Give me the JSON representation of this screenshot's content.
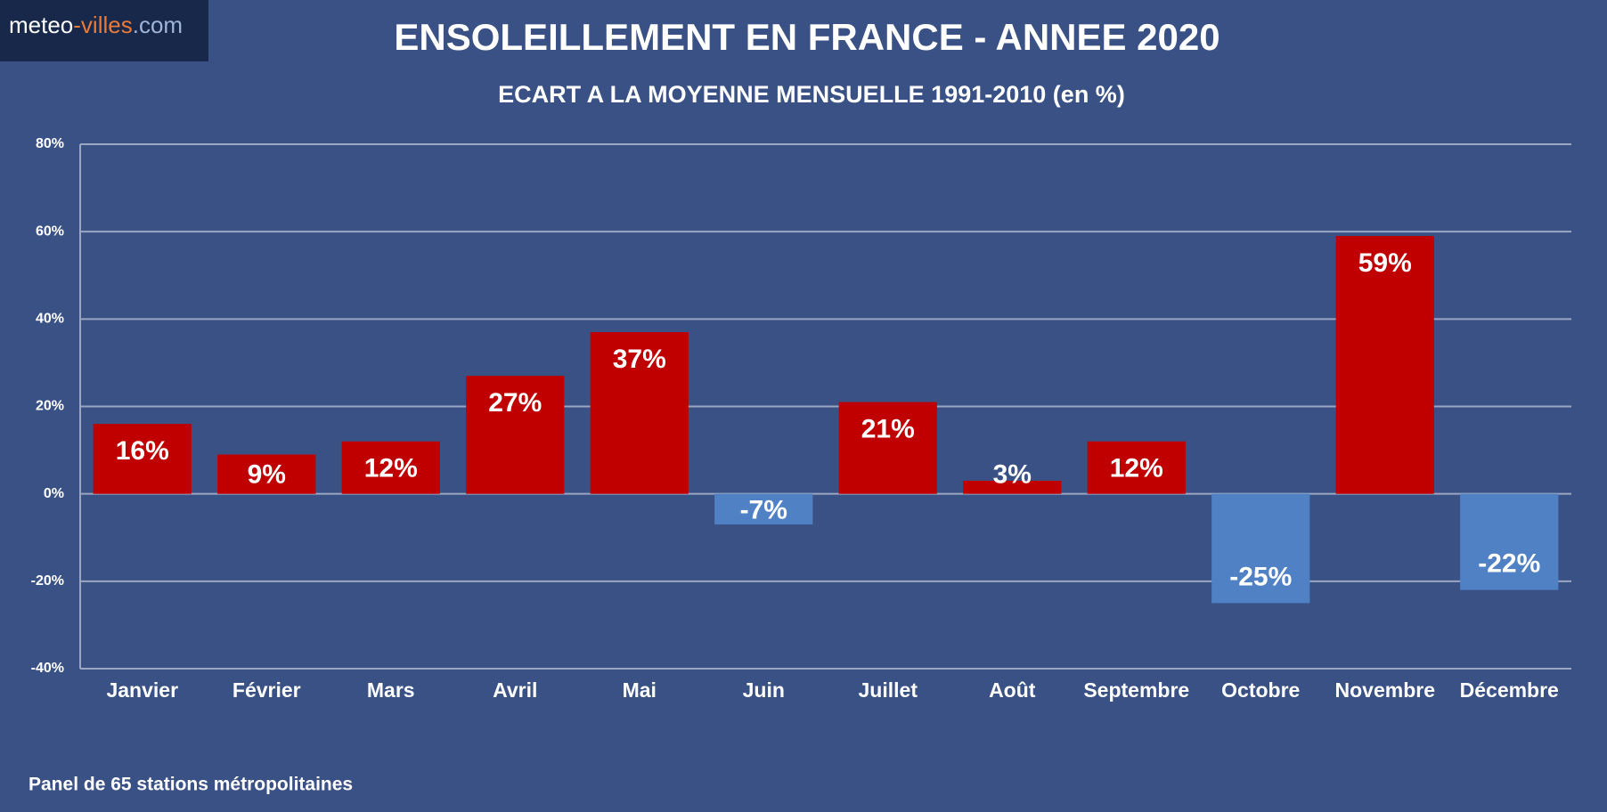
{
  "logo": [
    "meteo",
    "-villes",
    ".com"
  ],
  "chart_data": {
    "type": "bar",
    "title": "ENSOLEILLEMENT EN FRANCE - ANNEE 2020",
    "subtitle": "ECART A LA MOYENNE MENSUELLE 1991-2010 (en %)",
    "categories": [
      "Janvier",
      "Février",
      "Mars",
      "Avril",
      "Mai",
      "Juin",
      "Juillet",
      "Août",
      "Septembre",
      "Octobre",
      "Novembre",
      "Décembre"
    ],
    "values": [
      16,
      9,
      12,
      27,
      37,
      -7,
      21,
      3,
      12,
      -25,
      59,
      -22
    ],
    "value_labels": [
      "16%",
      "9%",
      "12%",
      "27%",
      "37%",
      "-7%",
      "21%",
      "3%",
      "12%",
      "-25%",
      "59%",
      "-22%"
    ],
    "positive_color": "#c00000",
    "negative_color": "#4f81c4",
    "ylim": [
      -40,
      80
    ],
    "yticks": [
      {
        "value": -40,
        "label": "-40%"
      },
      {
        "value": -20,
        "label": "-20%"
      },
      {
        "value": 0,
        "label": "0%"
      },
      {
        "value": 20,
        "label": "20%"
      },
      {
        "value": 40,
        "label": "40%"
      },
      {
        "value": 60,
        "label": "60%"
      },
      {
        "value": 80,
        "label": "80%"
      }
    ],
    "grid": true,
    "note": "Panel de 65 stations métropolitaines"
  }
}
